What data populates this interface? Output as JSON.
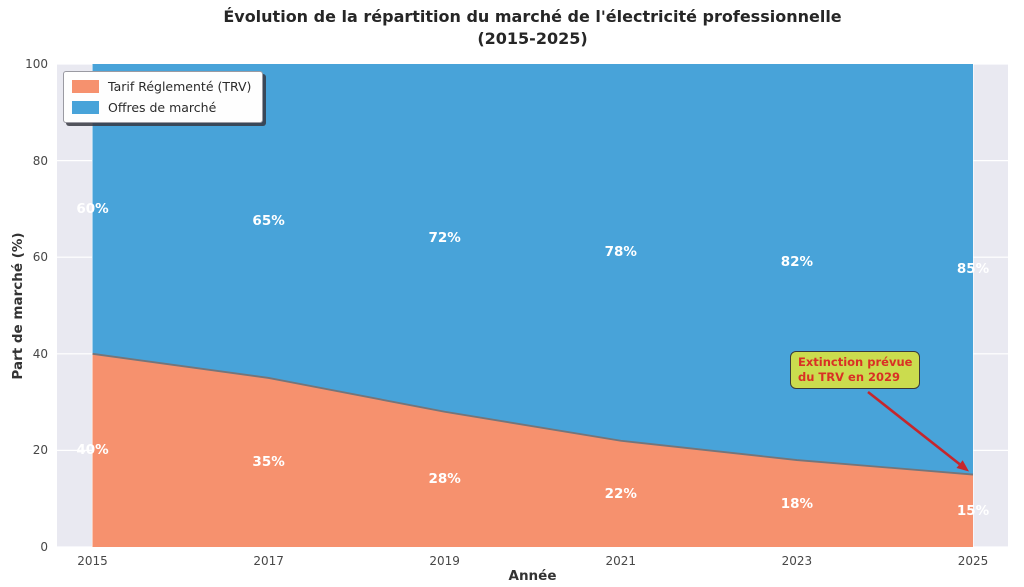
{
  "title": {
    "line1": "Évolution de la répartition du marché de l'électricité professionnelle",
    "line2": "(2015-2025)"
  },
  "chart_data": {
    "type": "area",
    "stacked": true,
    "x": [
      2015,
      2017,
      2019,
      2021,
      2023,
      2025
    ],
    "series": [
      {
        "name": "Tarif Réglementé (TRV)",
        "color": "#F6916E",
        "values": [
          40,
          35,
          28,
          22,
          18,
          15
        ],
        "labels": [
          "40%",
          "35%",
          "28%",
          "22%",
          "18%",
          "15%"
        ]
      },
      {
        "name": "Offres de marché",
        "color": "#48A3D9",
        "values": [
          60,
          65,
          72,
          78,
          82,
          85
        ],
        "labels": [
          "60%",
          "65%",
          "72%",
          "78%",
          "82%",
          "85%"
        ]
      }
    ],
    "xlabel": "Année",
    "ylabel": "Part de marché (%)",
    "ylim": [
      0,
      100
    ],
    "yticks": [
      0,
      20,
      40,
      60,
      80,
      100
    ],
    "xticks": [
      2015,
      2017,
      2019,
      2021,
      2023,
      2025
    ],
    "grid": true,
    "legend_position": "upper-left",
    "plot_bg": "#E9E9F1",
    "grid_color": "#FFFFFF",
    "boundary_line_color": "#74757A",
    "data_label_color": "#FFFFFF",
    "annotation": {
      "line1": "Extinction prévue",
      "line2": "du TRV en 2029",
      "box_bg": "#CBDC4E",
      "box_border": "#3A3A3A",
      "text_color": "#D93025",
      "arrow_color": "#C5262C",
      "target_x": 2025,
      "target_y": 15
    }
  }
}
